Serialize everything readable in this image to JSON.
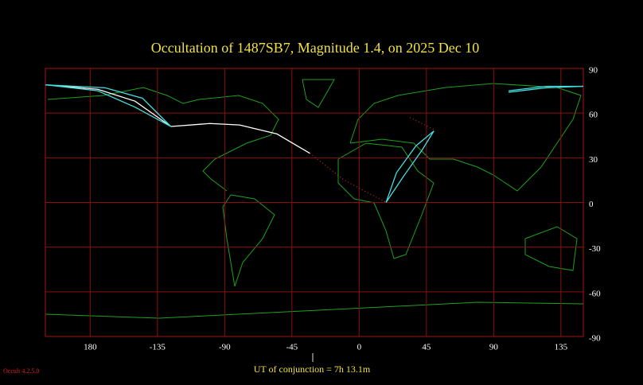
{
  "chart_data": {
    "type": "path-map",
    "title": "Occultation  of  1487SB7,      Magnitude 1.4,   on  2025 Dec 10",
    "footer": "UT of conjunction =  7h 13.1m",
    "version": "Occult 4.2.5.0",
    "xlim": [
      -210,
      150
    ],
    "ylim": [
      -90,
      90
    ],
    "xticks": [
      {
        "value": -180,
        "label": "180"
      },
      -135,
      -90,
      -45,
      0,
      45,
      90,
      135
    ],
    "yticks": [
      90,
      60,
      30,
      0,
      -30,
      -60,
      -90
    ],
    "grid": true,
    "series": [
      {
        "color": "#ffffff",
        "x": [
          -210,
          -175,
          -150,
          -126
        ],
        "y": [
          79,
          76,
          68,
          51
        ]
      },
      {
        "color": "#ffffff",
        "x": [
          -126,
          -100,
          -80,
          -55,
          -33
        ],
        "y": [
          51,
          53,
          52,
          46,
          33
        ]
      },
      {
        "color": "#cc2222",
        "style": "dotted",
        "x": [
          -33,
          -10,
          18
        ],
        "y": [
          33,
          15,
          0
        ]
      },
      {
        "color": "#cc2222",
        "style": "dotted",
        "x": [
          34,
          50
        ],
        "y": [
          57,
          49
        ]
      },
      {
        "color": "#44dddd",
        "x": [
          -210,
          -170,
          -145,
          -126
        ],
        "y": [
          79,
          77,
          70,
          51
        ]
      },
      {
        "color": "#44dddd",
        "x": [
          -210,
          -175,
          -150,
          -126
        ],
        "y": [
          79,
          75,
          64,
          51
        ]
      },
      {
        "color": "#44dddd",
        "x": [
          100,
          125,
          150
        ],
        "y": [
          74,
          77,
          78
        ]
      },
      {
        "color": "#44dddd",
        "x": [
          100,
          125,
          150
        ],
        "y": [
          75,
          78,
          78
        ]
      },
      {
        "color": "#44dddd",
        "x": [
          18,
          25,
          38,
          50
        ],
        "y": [
          0,
          20,
          38,
          48
        ]
      },
      {
        "color": "#44dddd",
        "x": [
          18,
          30,
          42,
          50
        ],
        "y": [
          0,
          18,
          35,
          48
        ]
      }
    ]
  }
}
